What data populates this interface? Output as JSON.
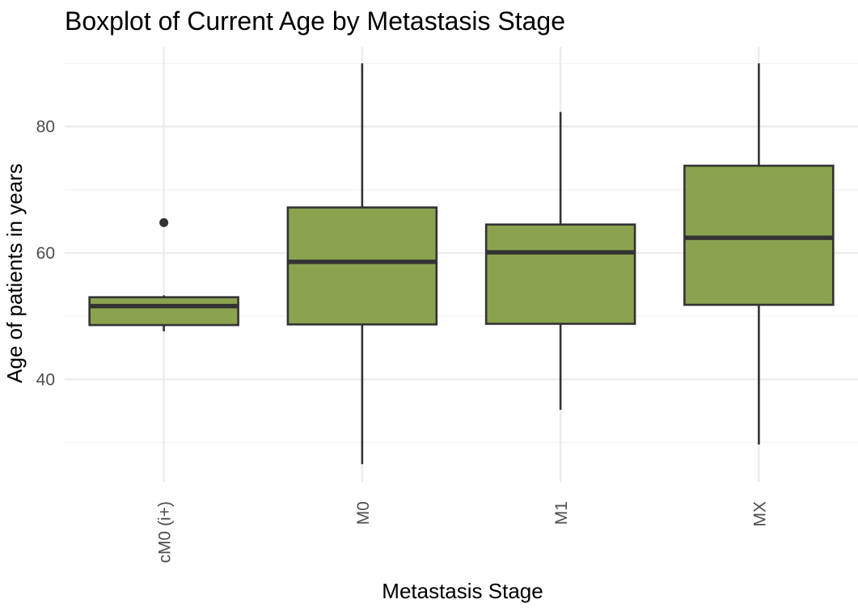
{
  "chart_data": {
    "type": "boxplot",
    "title": "Boxplot of Current Age by Metastasis Stage",
    "xlabel": "Metastasis Stage",
    "ylabel": "Age of patients in years",
    "categories": [
      "cM0 (i+)",
      "M0",
      "M1",
      "MX"
    ],
    "boxes": [
      {
        "category": "cM0 (i+)",
        "whisker_low": 47.6,
        "q1": 48.6,
        "median": 51.6,
        "q3": 53.0,
        "whisker_high": 53.3,
        "outliers": [
          64.8
        ]
      },
      {
        "category": "M0",
        "whisker_low": 26.6,
        "q1": 48.7,
        "median": 58.6,
        "q3": 67.2,
        "whisker_high": 90.0,
        "outliers": []
      },
      {
        "category": "M1",
        "whisker_low": 35.2,
        "q1": 48.8,
        "median": 60.1,
        "q3": 64.5,
        "whisker_high": 82.3,
        "outliers": []
      },
      {
        "category": "MX",
        "whisker_low": 29.7,
        "q1": 51.8,
        "median": 62.4,
        "q3": 73.8,
        "whisker_high": 90.0,
        "outliers": []
      }
    ],
    "yticks": [
      40,
      60,
      80
    ],
    "ylim": [
      23.8,
      92.6
    ],
    "grid": true,
    "legend": "none",
    "colors": {
      "fill": "#8ba34f",
      "stroke": "#333333",
      "grid": "#ebebeb",
      "tick_text": "#4d4d4d"
    }
  }
}
